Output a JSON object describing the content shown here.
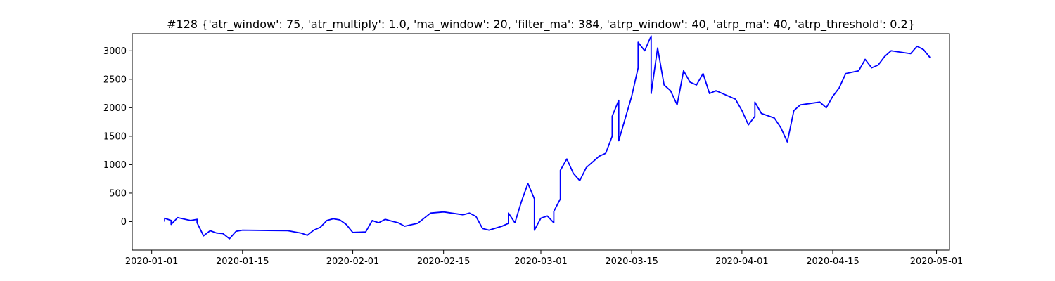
{
  "chart_data": {
    "type": "line",
    "title": "#128 {'atr_window': 75, 'atr_multiply': 1.0, 'ma_window': 20, 'filter_ma': 384, 'atrp_window': 40, 'atrp_ma': 40, 'atrp_threshold': 0.2}",
    "xlabel": "",
    "ylabel": "",
    "xlim": [
      "2019-12-29",
      "2020-05-03"
    ],
    "ylim": [
      -500,
      3300
    ],
    "grid": false,
    "x_ticks": [
      "2020-01-01",
      "2020-01-15",
      "2020-02-01",
      "2020-02-15",
      "2020-03-01",
      "2020-03-15",
      "2020-04-01",
      "2020-04-15",
      "2020-05-01"
    ],
    "y_ticks": [
      0,
      500,
      1000,
      1500,
      2000,
      2500,
      3000
    ],
    "series": [
      {
        "color": "#0000ff",
        "points": [
          [
            "2020-01-03",
            0
          ],
          [
            "2020-01-03",
            60
          ],
          [
            "2020-01-04",
            20
          ],
          [
            "2020-01-04",
            -50
          ],
          [
            "2020-01-05",
            70
          ],
          [
            "2020-01-07",
            20
          ],
          [
            "2020-01-08",
            40
          ],
          [
            "2020-01-08",
            -20
          ],
          [
            "2020-01-09",
            -250
          ],
          [
            "2020-01-10",
            -160
          ],
          [
            "2020-01-11",
            -200
          ],
          [
            "2020-01-12",
            -210
          ],
          [
            "2020-01-13",
            -300
          ],
          [
            "2020-01-14",
            -170
          ],
          [
            "2020-01-15",
            -150
          ],
          [
            "2020-01-22",
            -160
          ],
          [
            "2020-01-23",
            -180
          ],
          [
            "2020-01-24",
            -200
          ],
          [
            "2020-01-25",
            -240
          ],
          [
            "2020-01-26",
            -150
          ],
          [
            "2020-01-27",
            -100
          ],
          [
            "2020-01-28",
            20
          ],
          [
            "2020-01-29",
            50
          ],
          [
            "2020-01-30",
            30
          ],
          [
            "2020-01-31",
            -50
          ],
          [
            "2020-02-01",
            -190
          ],
          [
            "2020-02-03",
            -180
          ],
          [
            "2020-02-04",
            20
          ],
          [
            "2020-02-05",
            -20
          ],
          [
            "2020-02-06",
            40
          ],
          [
            "2020-02-07",
            10
          ],
          [
            "2020-02-08",
            -20
          ],
          [
            "2020-02-09",
            -80
          ],
          [
            "2020-02-11",
            -30
          ],
          [
            "2020-02-13",
            150
          ],
          [
            "2020-02-15",
            170
          ],
          [
            "2020-02-18",
            120
          ],
          [
            "2020-02-19",
            150
          ],
          [
            "2020-02-20",
            90
          ],
          [
            "2020-02-21",
            -120
          ],
          [
            "2020-02-22",
            -150
          ],
          [
            "2020-02-24",
            -80
          ],
          [
            "2020-02-25",
            -30
          ],
          [
            "2020-02-25",
            150
          ],
          [
            "2020-02-26",
            -20
          ],
          [
            "2020-02-27",
            350
          ],
          [
            "2020-02-28",
            670
          ],
          [
            "2020-02-29",
            400
          ],
          [
            "2020-02-29",
            150
          ],
          [
            "2020-02-29",
            -150
          ],
          [
            "2020-03-01",
            60
          ],
          [
            "2020-03-02",
            100
          ],
          [
            "2020-03-03",
            -20
          ],
          [
            "2020-03-03",
            180
          ],
          [
            "2020-03-04",
            400
          ],
          [
            "2020-03-04",
            900
          ],
          [
            "2020-03-05",
            1100
          ],
          [
            "2020-03-06",
            850
          ],
          [
            "2020-03-07",
            720
          ],
          [
            "2020-03-08",
            950
          ],
          [
            "2020-03-09",
            1050
          ],
          [
            "2020-03-10",
            1150
          ],
          [
            "2020-03-11",
            1200
          ],
          [
            "2020-03-12",
            1500
          ],
          [
            "2020-03-12",
            1850
          ],
          [
            "2020-03-13",
            2130
          ],
          [
            "2020-03-13",
            1420
          ],
          [
            "2020-03-15",
            2200
          ],
          [
            "2020-03-16",
            2700
          ],
          [
            "2020-03-16",
            3150
          ],
          [
            "2020-03-17",
            3000
          ],
          [
            "2020-03-18",
            3260
          ],
          [
            "2020-03-18",
            2250
          ],
          [
            "2020-03-19",
            3050
          ],
          [
            "2020-03-20",
            2400
          ],
          [
            "2020-03-21",
            2300
          ],
          [
            "2020-03-22",
            2050
          ],
          [
            "2020-03-23",
            2650
          ],
          [
            "2020-03-24",
            2450
          ],
          [
            "2020-03-25",
            2400
          ],
          [
            "2020-03-26",
            2600
          ],
          [
            "2020-03-27",
            2250
          ],
          [
            "2020-03-28",
            2300
          ],
          [
            "2020-03-31",
            2150
          ],
          [
            "2020-04-01",
            1950
          ],
          [
            "2020-04-02",
            1700
          ],
          [
            "2020-04-03",
            1850
          ],
          [
            "2020-04-03",
            2100
          ],
          [
            "2020-04-04",
            1900
          ],
          [
            "2020-04-06",
            1820
          ],
          [
            "2020-04-07",
            1650
          ],
          [
            "2020-04-08",
            1400
          ],
          [
            "2020-04-09",
            1950
          ],
          [
            "2020-04-10",
            2050
          ],
          [
            "2020-04-13",
            2100
          ],
          [
            "2020-04-14",
            2000
          ],
          [
            "2020-04-15",
            2200
          ],
          [
            "2020-04-16",
            2350
          ],
          [
            "2020-04-17",
            2600
          ],
          [
            "2020-04-19",
            2650
          ],
          [
            "2020-04-20",
            2850
          ],
          [
            "2020-04-21",
            2700
          ],
          [
            "2020-04-22",
            2750
          ],
          [
            "2020-04-23",
            2900
          ],
          [
            "2020-04-24",
            3000
          ],
          [
            "2020-04-27",
            2950
          ],
          [
            "2020-04-28",
            3080
          ],
          [
            "2020-04-29",
            3020
          ],
          [
            "2020-04-30",
            2880
          ]
        ]
      }
    ]
  }
}
